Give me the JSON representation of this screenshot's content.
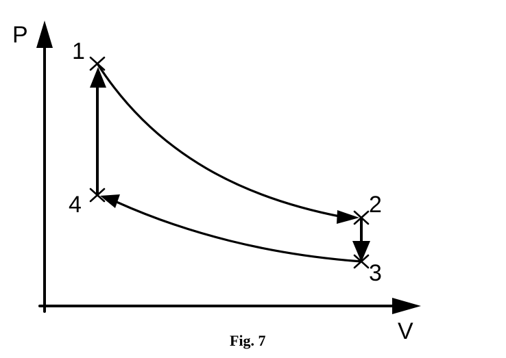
{
  "axes": {
    "y_label": "P",
    "x_label": "V"
  },
  "points": {
    "p1": "1",
    "p2": "2",
    "p3": "3",
    "p4": "4"
  },
  "caption": "Fig. 7"
}
